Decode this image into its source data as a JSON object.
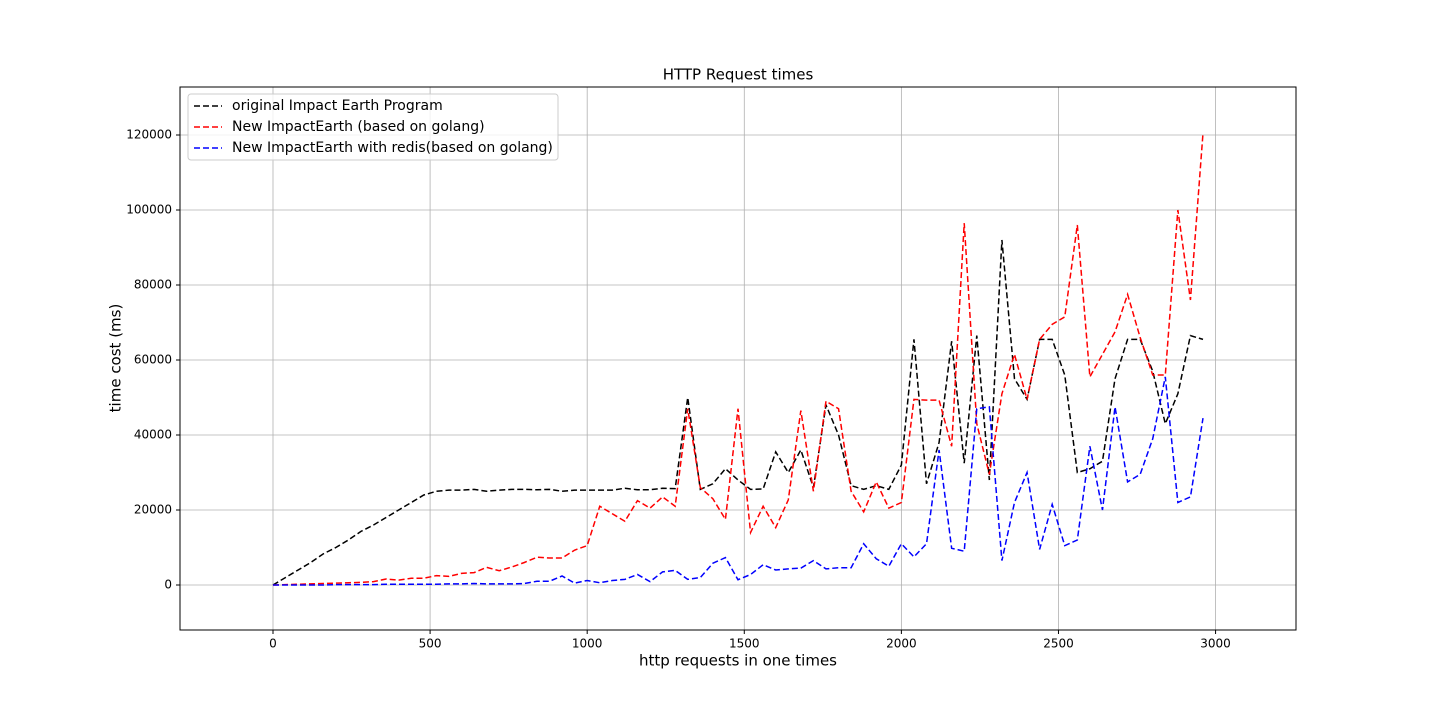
{
  "chart_data": {
    "type": "line",
    "title": "HTTP Request times",
    "xlabel": "http requests in one times",
    "ylabel": "time cost (ms)",
    "x": [
      0,
      40,
      80,
      120,
      160,
      200,
      240,
      280,
      320,
      360,
      400,
      440,
      480,
      520,
      560,
      600,
      640,
      680,
      720,
      760,
      800,
      840,
      880,
      920,
      960,
      1000,
      1040,
      1080,
      1120,
      1160,
      1200,
      1240,
      1280,
      1320,
      1360,
      1400,
      1440,
      1480,
      1520,
      1560,
      1600,
      1640,
      1680,
      1720,
      1760,
      1800,
      1840,
      1880,
      1920,
      1960,
      2000,
      2040,
      2080,
      2120,
      2160,
      2200,
      2240,
      2280,
      2320,
      2360,
      2400,
      2440,
      2480,
      2520,
      2560,
      2600,
      2640,
      2680,
      2720,
      2760,
      2800,
      2840,
      2880,
      2920,
      2960
    ],
    "series": [
      {
        "name": "original Impact Earth Program",
        "color": "#000000",
        "values": [
          0,
          2000,
          4000,
          6000,
          8300,
          10000,
          12000,
          14300,
          16000,
          18000,
          20000,
          22000,
          24000,
          25000,
          25300,
          25300,
          25500,
          25000,
          25300,
          25500,
          25500,
          25400,
          25500,
          25000,
          25300,
          25300,
          25300,
          25300,
          25800,
          25400,
          25400,
          25800,
          25700,
          50000,
          25500,
          27000,
          31000,
          28000,
          25500,
          25600,
          35500,
          30000,
          36000,
          26000,
          48000,
          40000,
          26500,
          25500,
          26500,
          25500,
          32000,
          65500,
          27000,
          38000,
          65000,
          32500,
          66500,
          28000,
          92000,
          55000,
          49500,
          65500,
          65500,
          56000,
          30000,
          31000,
          33000,
          55000,
          65500,
          65500,
          57000,
          43000,
          51000,
          66500,
          65500
        ]
      },
      {
        "name": "New ImpactEarth (based on golang)",
        "color": "#ff0000",
        "values": [
          0,
          100,
          200,
          300,
          400,
          500,
          600,
          700,
          900,
          1600,
          1300,
          1800,
          1800,
          2500,
          2300,
          3100,
          3300,
          4700,
          3800,
          4800,
          6000,
          7400,
          7200,
          7200,
          9300,
          10500,
          21000,
          19000,
          17000,
          22500,
          20500,
          23500,
          21000,
          47000,
          26000,
          23000,
          17500,
          47000,
          14000,
          21000,
          15300,
          22700,
          46500,
          25000,
          49000,
          47000,
          25000,
          19500,
          27500,
          20500,
          22000,
          49500,
          49300,
          49300,
          37000,
          96500,
          43000,
          29500,
          51000,
          61500,
          49500,
          65500,
          69500,
          71500,
          96000,
          55500,
          61500,
          67500,
          77500,
          66000,
          56000,
          56000,
          100000,
          76000,
          120500
        ]
      },
      {
        "name": "New ImpactEarth with redis(based on golang)",
        "color": "#0000ff",
        "values": [
          0,
          0,
          0,
          0,
          0,
          100,
          100,
          100,
          100,
          200,
          200,
          200,
          200,
          200,
          300,
          300,
          400,
          300,
          300,
          300,
          400,
          1000,
          1000,
          2400,
          500,
          1200,
          600,
          1200,
          1500,
          2800,
          900,
          3500,
          3900,
          1500,
          2000,
          5800,
          7300,
          1400,
          2800,
          5400,
          4000,
          4300,
          4500,
          6500,
          4300,
          4600,
          4600,
          11000,
          7000,
          5000,
          11000,
          7500,
          11000,
          36000,
          9800,
          9000,
          47000,
          47500,
          6500,
          22000,
          30000,
          9500,
          21500,
          10500,
          12000,
          37000,
          20000,
          47500,
          27500,
          29500,
          39000,
          55500,
          22000,
          23500,
          44500
        ]
      }
    ],
    "xlim": [
      -296,
      3256
    ],
    "ylim": [
      -12000,
      132800
    ],
    "xticks": [
      0,
      500,
      1000,
      1500,
      2000,
      2500,
      3000
    ],
    "yticks": [
      0,
      20000,
      40000,
      60000,
      80000,
      100000,
      120000
    ],
    "grid": true,
    "legend": "upper left",
    "line_style": "dashed"
  }
}
